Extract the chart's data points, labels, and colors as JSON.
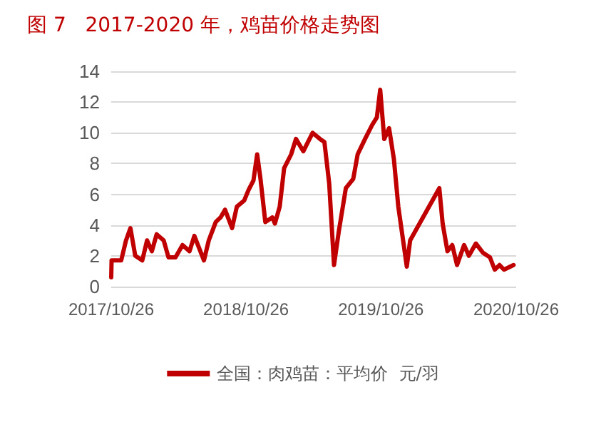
{
  "chart_data": {
    "type": "line",
    "title": "图 7   2017-2020 年，鸡苗价格走势图",
    "x": [
      "2017-10-26",
      "2017-10-27",
      "2017-11-22",
      "2017-12-05",
      "2017-12-17",
      "2017-12-30",
      "2018-01-18",
      "2018-01-31",
      "2018-02-13",
      "2018-02-26",
      "2018-03-17",
      "2018-03-30",
      "2018-04-18",
      "2018-05-07",
      "2018-05-26",
      "2018-06-08",
      "2018-06-21",
      "2018-07-04",
      "2018-07-17",
      "2018-08-05",
      "2018-08-18",
      "2018-08-30",
      "2018-09-18",
      "2018-10-01",
      "2018-10-21",
      "2018-11-02",
      "2018-11-15",
      "2018-11-25",
      "2018-12-04",
      "2018-12-17",
      "2019-01-05",
      "2019-01-12",
      "2019-01-25",
      "2019-02-06",
      "2019-02-25",
      "2019-03-10",
      "2019-03-30",
      "2019-04-24",
      "2019-05-14",
      "2019-05-26",
      "2019-06-08",
      "2019-06-21",
      "2019-07-04",
      "2019-07-23",
      "2019-08-12",
      "2019-08-24",
      "2019-09-13",
      "2019-10-02",
      "2019-10-15",
      "2019-10-24",
      "2019-11-04",
      "2019-11-17",
      "2019-11-30",
      "2019-12-12",
      "2019-12-25",
      "2020-01-04",
      "2020-01-13",
      "2020-04-01",
      "2020-04-10",
      "2020-04-23",
      "2020-05-06",
      "2020-05-19",
      "2020-06-07",
      "2020-06-20",
      "2020-07-09",
      "2020-07-28",
      "2020-08-16",
      "2020-08-29",
      "2020-09-11",
      "2020-09-23",
      "2020-10-19"
    ],
    "series": [
      {
        "name": "全国：肉鸡苗：平均价  元/羽",
        "color": "#c00000",
        "values": [
          0.6,
          1.7,
          1.7,
          3.0,
          3.8,
          2.0,
          1.7,
          3.0,
          2.3,
          3.4,
          3.0,
          1.9,
          1.9,
          2.7,
          2.3,
          3.3,
          2.5,
          1.7,
          3.0,
          4.2,
          4.5,
          5.0,
          3.8,
          5.2,
          5.6,
          6.3,
          6.9,
          8.6,
          7.0,
          4.2,
          4.5,
          4.1,
          5.2,
          7.7,
          8.6,
          9.6,
          8.8,
          10.0,
          9.6,
          9.4,
          6.7,
          1.4,
          3.6,
          6.4,
          7.0,
          8.6,
          9.6,
          10.5,
          11.0,
          12.8,
          9.6,
          10.3,
          8.3,
          5.2,
          3.0,
          1.3,
          3.0,
          6.4,
          4.1,
          2.3,
          2.7,
          1.4,
          2.7,
          2.0,
          2.8,
          2.2,
          1.9,
          1.1,
          1.4,
          1.1,
          1.4
        ]
      }
    ],
    "xlim": [
      "2017-10-26",
      "2020-10-26"
    ],
    "xticks": [
      {
        "value": "2017-10-26",
        "label": "2017/10/26"
      },
      {
        "value": "2018-10-26",
        "label": "2018/10/26"
      },
      {
        "value": "2019-10-26",
        "label": "2019/10/26"
      },
      {
        "value": "2020-10-26",
        "label": "2020/10/26"
      }
    ],
    "ylim": [
      0,
      14
    ],
    "yticks": [
      0,
      2,
      4,
      6,
      8,
      10,
      12,
      14
    ],
    "grid": "y",
    "legend": "bottom",
    "marker": "none",
    "line_style": "solid"
  }
}
